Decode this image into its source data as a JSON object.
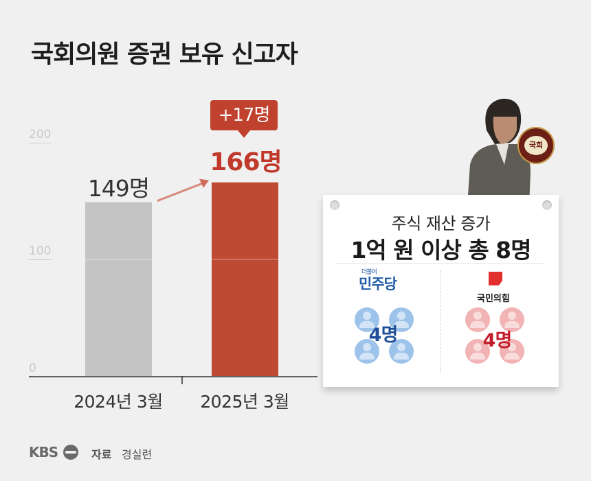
{
  "title": "국회의원 증권 보유 신고자",
  "chart_data": {
    "type": "bar",
    "categories": [
      "2024년 3월",
      "2025년 3월"
    ],
    "values": [
      149,
      166
    ],
    "value_labels": [
      "149명",
      "166명"
    ],
    "ylim": [
      0,
      200
    ],
    "yticks": [
      "0",
      "100",
      "200"
    ],
    "bar_colors": [
      "#c4c4c4",
      "#bf4a33"
    ],
    "change_badge": "+17명"
  },
  "card": {
    "subtitle": "주식 재산 증가",
    "headline": "1억 원 이상 총 8명",
    "parties": [
      {
        "name": "더불어민주당",
        "logo_small": "더불어",
        "logo_main": "민주당",
        "count": "4명",
        "color": "#9dc3ea"
      },
      {
        "name": "국민의힘",
        "logo_main": "국민의힘",
        "count": "4명",
        "color": "#f1b3b3"
      }
    ]
  },
  "seal_text": "국회",
  "footer": {
    "logo": "KBS",
    "source_label": "자료",
    "source": "경실련"
  }
}
